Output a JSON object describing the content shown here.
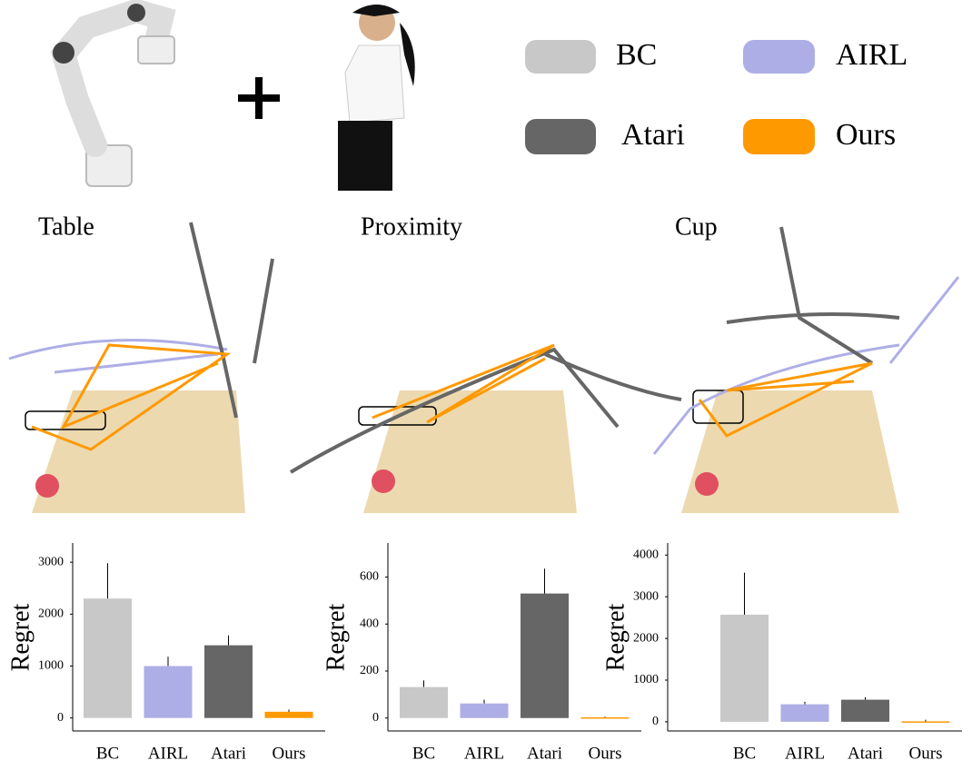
{
  "legend": [
    {
      "name": "BC",
      "color": "#c8c8c8"
    },
    {
      "name": "AIRL",
      "color": "#aeaee6"
    },
    {
      "name": "Atari",
      "color": "#666666"
    },
    {
      "name": "Ours",
      "color": "#ff9900"
    }
  ],
  "chart_data": [
    {
      "type": "bar",
      "title": "Table",
      "ylabel": "Regret",
      "categories": [
        "BC",
        "AIRL",
        "Atari",
        "Ours"
      ],
      "colors": [
        "#c8c8c8",
        "#aeaee6",
        "#666666",
        "#ff9900"
      ],
      "values": [
        2300,
        1000,
        1400,
        120
      ],
      "errors": [
        680,
        180,
        190,
        40
      ],
      "ylim": [
        -250,
        3370
      ],
      "yticks": [
        0,
        1000,
        2000,
        3000
      ]
    },
    {
      "type": "bar",
      "title": "Proximity",
      "ylabel": "Regret",
      "categories": [
        "BC",
        "AIRL",
        "Atari",
        "Ours"
      ],
      "colors": [
        "#c8c8c8",
        "#aeaee6",
        "#666666",
        "#ff9900"
      ],
      "values": [
        132,
        62,
        530,
        3
      ],
      "errors": [
        28,
        16,
        106,
        3
      ],
      "ylim": [
        -55,
        745
      ],
      "yticks": [
        0,
        200,
        400,
        600
      ]
    },
    {
      "type": "bar",
      "title": "Cup",
      "ylabel": "Regret",
      "categories": [
        "BC",
        "AIRL",
        "Atari",
        "Ours"
      ],
      "colors": [
        "#c8c8c8",
        "#aeaee6",
        "#666666",
        "#ff9900"
      ],
      "values": [
        2570,
        420,
        530,
        10
      ],
      "errors": [
        1010,
        60,
        60,
        40
      ],
      "ylim": [
        -220,
        4290
      ],
      "yticks": [
        0,
        1000,
        2000,
        3000,
        4000
      ]
    }
  ]
}
